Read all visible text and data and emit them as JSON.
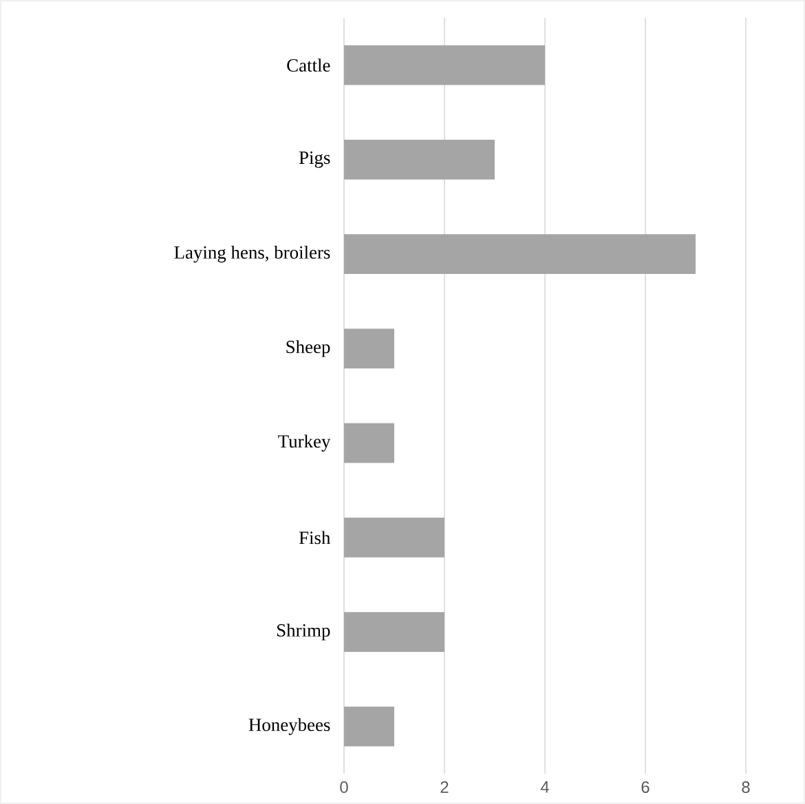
{
  "chart_data": {
    "type": "bar",
    "orientation": "horizontal",
    "categories": [
      "Cattle",
      "Pigs",
      "Laying hens, broilers",
      "Sheep",
      "Turkey",
      "Fish",
      "Shrimp",
      "Honeybees"
    ],
    "values": [
      4,
      3,
      7,
      1,
      1,
      2,
      2,
      1
    ],
    "color": "#a5a5a5",
    "xlim": [
      0,
      8
    ],
    "xticks": [
      0,
      2,
      4,
      6,
      8
    ],
    "grid": "x"
  }
}
